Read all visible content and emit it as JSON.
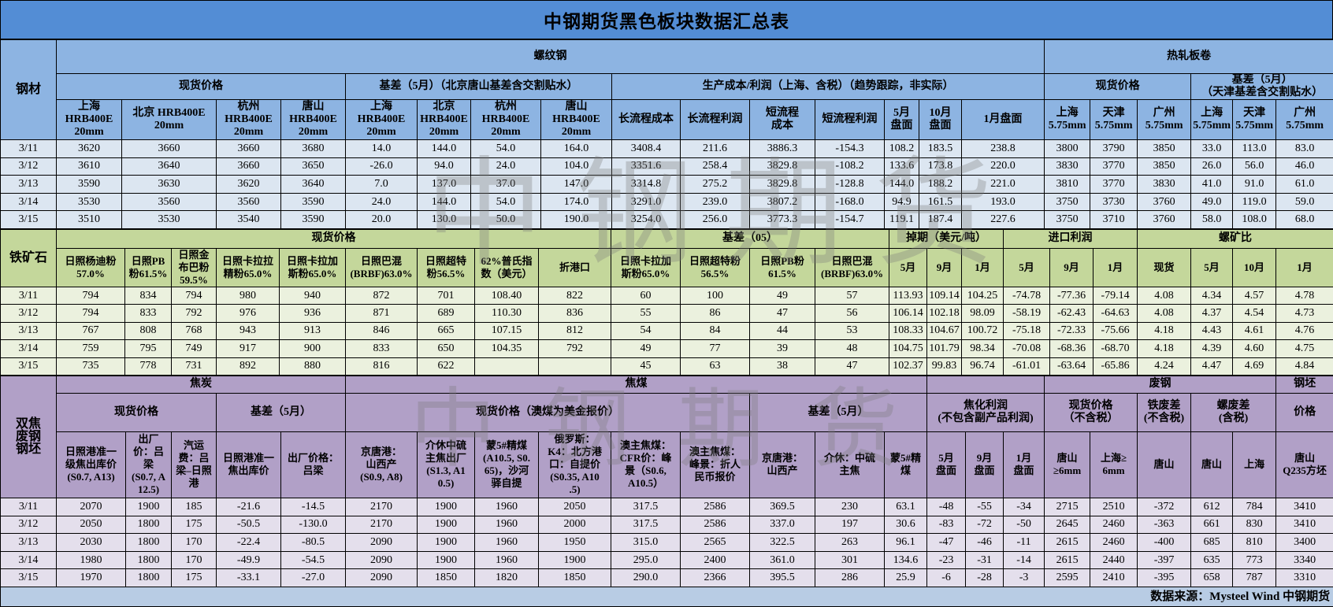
{
  "title": "中钢期货黑色板块数据汇总表",
  "watermark": "中钢期货",
  "colors": {
    "title_bg": "#538DD5",
    "rebar_header": "#8DB4E2",
    "rebar_row": "#DCE6F1",
    "ore_header": "#C4D79B",
    "ore_row": "#EBF1DE",
    "coke_header": "#B1A0C7",
    "coke_row": "#E4DFEC"
  },
  "rebar": {
    "side_label": "钢材",
    "group_rebar": "螺纹钢",
    "group_hrc": "热轧板卷",
    "spot": "现货价格",
    "basis": "基差（5月）（北京唐山基差含交割贴水）",
    "cost": "生产成本/利润（上海、含税）（趋势跟踪，非实际）",
    "hrc_spot": "现货价格",
    "hrc_basis": "基差（5月）\n（天津基差含交割贴水）",
    "columns": [
      "上海\nHRB400E\n20mm",
      "北京 HRB400E\n20mm",
      "杭州\nHRB400E\n20mm",
      "唐山\nHRB400E\n20mm",
      "上海\nHRB400E\n20mm",
      "北京\nHRB400E\n20mm",
      "杭州\nHRB400E\n20mm",
      "唐山\nHRB400E\n20mm",
      "长流程成本",
      "长流程利润",
      "短流程\n成本",
      "短流程利润",
      "5月\n盘面",
      "10月\n盘面",
      "1月盘面",
      "上海\n5.75mm",
      "天津\n5.75mm",
      "广州\n5.75mm",
      "上海\n5.75mm",
      "天津\n5.75mm",
      "广州\n5.75mm"
    ],
    "rows": [
      [
        "3/11",
        "3620",
        "3660",
        "3660",
        "3680",
        "14.0",
        "144.0",
        "54.0",
        "164.0",
        "3408.4",
        "211.6",
        "3886.3",
        "-154.3",
        "108.2",
        "183.5",
        "238.8",
        "3800",
        "3790",
        "3850",
        "33.0",
        "113.0",
        "83.0"
      ],
      [
        "3/12",
        "3610",
        "3640",
        "3660",
        "3650",
        "-26.0",
        "94.0",
        "24.0",
        "104.0",
        "3351.6",
        "258.4",
        "3829.8",
        "-108.2",
        "133.6",
        "173.8",
        "220.0",
        "3830",
        "3770",
        "3850",
        "26.0",
        "56.0",
        "46.0"
      ],
      [
        "3/13",
        "3590",
        "3630",
        "3620",
        "3640",
        "7.0",
        "137.0",
        "37.0",
        "147.0",
        "3314.8",
        "275.2",
        "3829.8",
        "-128.8",
        "144.0",
        "188.2",
        "221.0",
        "3810",
        "3770",
        "3830",
        "41.0",
        "91.0",
        "61.0"
      ],
      [
        "3/14",
        "3530",
        "3560",
        "3560",
        "3590",
        "24.0",
        "144.0",
        "54.0",
        "174.0",
        "3291.0",
        "239.0",
        "3807.2",
        "-168.0",
        "94.9",
        "161.5",
        "193.0",
        "3750",
        "3730",
        "3760",
        "49.0",
        "119.0",
        "59.0"
      ],
      [
        "3/15",
        "3510",
        "3530",
        "3540",
        "3590",
        "20.0",
        "130.0",
        "50.0",
        "190.0",
        "3254.0",
        "256.0",
        "3773.3",
        "-154.7",
        "119.1",
        "187.4",
        "227.6",
        "3750",
        "3710",
        "3760",
        "58.0",
        "108.0",
        "68.0"
      ]
    ]
  },
  "ore": {
    "side_label": "铁矿石",
    "spot": "现货价格",
    "basis": "基差（05）",
    "swap": "掉期（美元/吨）",
    "import_profit": "进口利润",
    "ratio": "螺矿比",
    "columns": [
      "日照杨迪粉\n57.0%",
      "日照PB\n粉61.5%",
      "日照金\n布巴粉\n59.5%",
      "日照卡拉拉\n精粉65.0%",
      "日照卡拉加\n斯粉65.0%",
      "日照巴混\n(BRBF)63.0%",
      "日照超特\n粉56.5%",
      "62%普氏指\n数（美元）",
      "折港口",
      "日照卡拉加\n斯粉65.0%",
      "日照超特粉\n56.5%",
      "日照PB粉\n61.5%",
      "日照巴混\n(BRBF)63.0%",
      "5月",
      "9月",
      "1月",
      "5月",
      "9月",
      "1月",
      "现货",
      "5月",
      "10月",
      "1月"
    ],
    "rows": [
      [
        "3/11",
        "794",
        "834",
        "794",
        "980",
        "940",
        "872",
        "701",
        "108.40",
        "822",
        "60",
        "100",
        "49",
        "57",
        "113.93",
        "109.14",
        "104.25",
        "-74.78",
        "-77.36",
        "-79.14",
        "4.08",
        "4.34",
        "4.57",
        "4.78"
      ],
      [
        "3/12",
        "794",
        "833",
        "792",
        "976",
        "936",
        "871",
        "689",
        "110.30",
        "836",
        "55",
        "86",
        "47",
        "56",
        "106.14",
        "102.18",
        "98.09",
        "-58.19",
        "-62.43",
        "-64.63",
        "4.08",
        "4.37",
        "4.54",
        "4.73"
      ],
      [
        "3/13",
        "767",
        "808",
        "768",
        "943",
        "913",
        "846",
        "665",
        "107.15",
        "812",
        "54",
        "84",
        "44",
        "53",
        "108.33",
        "104.67",
        "100.72",
        "-75.18",
        "-72.33",
        "-75.66",
        "4.18",
        "4.43",
        "4.61",
        "4.76"
      ],
      [
        "3/14",
        "759",
        "795",
        "749",
        "917",
        "900",
        "833",
        "650",
        "104.35",
        "792",
        "49",
        "77",
        "39",
        "48",
        "104.75",
        "101.79",
        "98.34",
        "-70.08",
        "-68.36",
        "-68.70",
        "4.18",
        "4.39",
        "4.60",
        "4.75"
      ],
      [
        "3/15",
        "735",
        "778",
        "731",
        "892",
        "880",
        "816",
        "622",
        "",
        "",
        "45",
        "63",
        "38",
        "47",
        "102.37",
        "99.83",
        "96.74",
        "-61.01",
        "-63.64",
        "-65.86",
        "4.24",
        "4.47",
        "4.69",
        "4.84"
      ]
    ]
  },
  "coke": {
    "side_label": "双焦\n废钢\n钢坯",
    "group_coke": "焦炭",
    "group_coal": "焦煤",
    "group_scrap": "废钢",
    "group_billet": "钢坯",
    "coke_spot": "现货价格",
    "coke_basis": "基差（5月）",
    "coal_spot": "现货价格（澳煤为美金报价）",
    "coal_basis": "基差（5月）",
    "coking_profit": "焦化利润\n(不包含副产品利润)",
    "scrap_spot": "现货价格\n（不含税）",
    "iron_scrap": "铁废差\n(不含税)",
    "rebar_scrap": "螺废差\n(含税)",
    "billet_price": "价格",
    "columns": [
      "日照港准一\n级焦出库价\n(S0.7, A13)",
      "出厂\n价：吕\n梁\n(S0.7, A\n12.5)",
      "汽运\n费：吕\n梁–日照\n港",
      "日照港准一\n焦出库价",
      "出厂价格：\n吕梁",
      "京唐港：\n山西产\n(S0.9, A8)",
      "介休中硫\n主焦出厂\n(S1.3, A1\n0.5)",
      "蒙5#精煤\n(A10.5, S0.\n65)，沙河\n驿自提",
      "俄罗斯：\nK4：北方港\n口：自提价\n(S0.35, A10\n.5)",
      "澳主焦煤：\nCFR价：峰\n景（S0.6,\nA10.5）",
      "澳主焦煤：\n峰景：折人\n民币报价",
      "京唐港：\n山西产",
      "介休：中硫\n主焦",
      "蒙5#精\n煤",
      "5月\n盘面",
      "9月\n盘面",
      "1月\n盘面",
      "唐山\n≥6mm",
      "上海≥\n6mm",
      "唐山",
      "唐山",
      "上海",
      "唐山\nQ235方坯"
    ],
    "rows": [
      [
        "3/11",
        "2070",
        "1900",
        "185",
        "-21.6",
        "-14.5",
        "2170",
        "1900",
        "1960",
        "2050",
        "317.5",
        "2586",
        "369.5",
        "230",
        "63.1",
        "-48",
        "-55",
        "-34",
        "2715",
        "2510",
        "-372",
        "612",
        "784",
        "3410"
      ],
      [
        "3/12",
        "2050",
        "1800",
        "175",
        "-50.5",
        "-130.0",
        "2170",
        "1900",
        "1960",
        "2000",
        "317.5",
        "2586",
        "337.0",
        "197",
        "30.6",
        "-83",
        "-72",
        "-50",
        "2645",
        "2460",
        "-363",
        "661",
        "830",
        "3410"
      ],
      [
        "3/13",
        "2030",
        "1800",
        "170",
        "-22.4",
        "-80.5",
        "2090",
        "1900",
        "1960",
        "1950",
        "315.0",
        "2565",
        "322.5",
        "263",
        "96.1",
        "-47",
        "-46",
        "-11",
        "2615",
        "2460",
        "-400",
        "685",
        "810",
        "3400"
      ],
      [
        "3/14",
        "1980",
        "1800",
        "170",
        "-49.9",
        "-54.5",
        "2090",
        "1900",
        "1960",
        "1900",
        "295.0",
        "2400",
        "361.0",
        "301",
        "134.6",
        "-23",
        "-31",
        "-14",
        "2615",
        "2440",
        "-397",
        "635",
        "773",
        "3340"
      ],
      [
        "3/15",
        "1970",
        "1800",
        "175",
        "-33.1",
        "-27.0",
        "2090",
        "1850",
        "1820",
        "1850",
        "290.0",
        "2366",
        "395.5",
        "286",
        "25.9",
        "-6",
        "-28",
        "-3",
        "2595",
        "2410",
        "-395",
        "658",
        "787",
        "3310"
      ]
    ]
  },
  "source": "数据来源：Mysteel Wind 中钢期货"
}
